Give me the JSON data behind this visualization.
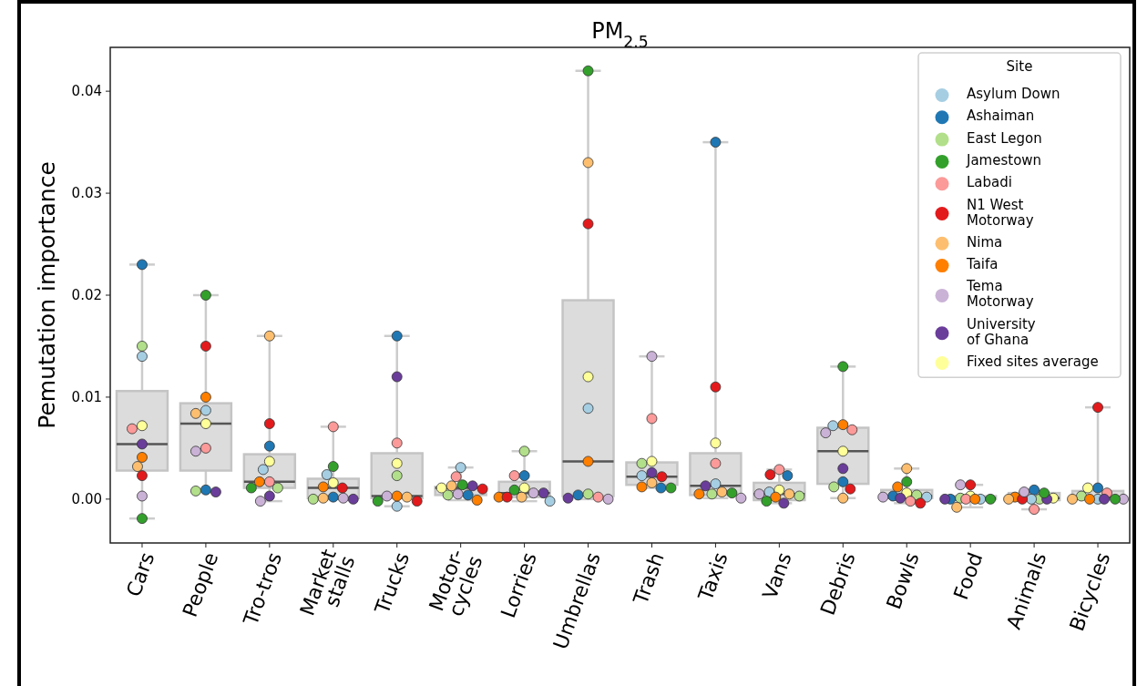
{
  "chart_data": {
    "type": "box",
    "title": "PM$_{2.5}$",
    "ylabel": "Pemutation importance",
    "legend_title": "Site",
    "legend": "top right",
    "marker": "circle",
    "grid": false,
    "categories": [
      "Cars",
      "People",
      "Tro-tros",
      "Market\nstalls",
      "Trucks",
      "Motor-\ncycles",
      "Lorries",
      "Umbrellas",
      "Trash",
      "Taxis",
      "Vans",
      "Debris",
      "Bowls",
      "Food",
      "Animals",
      "Bicycles"
    ],
    "ylim": [
      -0.0043,
      0.0443
    ],
    "yticks": [
      {
        "value": 0,
        "label": "0.00"
      },
      {
        "value": 0.01,
        "label": "0.01"
      },
      {
        "value": 0.02,
        "label": "0.02"
      },
      {
        "value": 0.03,
        "label": "0.03"
      },
      {
        "value": 0.04,
        "label": "0.04"
      }
    ],
    "color": "#dcdcdc",
    "boxes": [
      {
        "low": -0.0019,
        "q1": 0.0028,
        "median": 0.0054,
        "q3": 0.0106,
        "high": 0.023
      },
      {
        "low": 0.0007,
        "q1": 0.0028,
        "median": 0.0074,
        "q3": 0.0094,
        "high": 0.02
      },
      {
        "low": -0.0002,
        "q1": 0.0011,
        "median": 0.0017,
        "q3": 0.0044,
        "high": 0.016
      },
      {
        "low": 0,
        "q1": 0.0001,
        "median": 0.0011,
        "q3": 0.002,
        "high": 0.0071
      },
      {
        "low": -0.0007,
        "q1": 0.0001,
        "median": 0.0003,
        "q3": 0.0045,
        "high": 0.016
      },
      {
        "low": -0.0001,
        "q1": 0.0004,
        "median": 0.0011,
        "q3": 0.0012,
        "high": 0.0031
      },
      {
        "low": -0.0002,
        "q1": 0.0002,
        "median": 0.0006,
        "q3": 0.0017,
        "high": 0.0047
      },
      {
        "low": 0,
        "q1": 0.0003,
        "median": 0.0037,
        "q3": 0.0195,
        "high": 0.042
      },
      {
        "low": 0.0011,
        "q1": 0.0014,
        "median": 0.0022,
        "q3": 0.0036,
        "high": 0.014
      },
      {
        "low": 0.0001,
        "q1": 0.0004,
        "median": 0.0013,
        "q3": 0.0045,
        "high": 0.035
      },
      {
        "low": -0.0004,
        "q1": -0.0001,
        "median": 0.0005,
        "q3": 0.0016,
        "high": 0.0029
      },
      {
        "low": 0.0001,
        "q1": 0.0015,
        "median": 0.0047,
        "q3": 0.007,
        "high": 0.013
      },
      {
        "low": -0.0004,
        "q1": 0.0001,
        "median": 0.0003,
        "q3": 0.0009,
        "high": 0.003
      },
      {
        "low": -0.0008,
        "q1": 0,
        "median": 0.0001,
        "q3": 0.0003,
        "high": 0.0014
      },
      {
        "low": -0.001,
        "q1": -0.0001,
        "median": 0.0001,
        "q3": 0.0006,
        "high": 0.0009
      },
      {
        "low": 0,
        "q1": 0,
        "median": 0.0002,
        "q3": 0.0008,
        "high": 0.009
      }
    ],
    "series": [
      {
        "name": "Asylum Down",
        "color": "#a6cee3",
        "type": "scatter",
        "x": [
          "Cars",
          "People",
          "Tro-tros",
          "Market\nstalls",
          "Trucks",
          "Motor-\ncycles",
          "Lorries",
          "Umbrellas",
          "Trash",
          "Taxis",
          "Vans",
          "Debris",
          "Bowls",
          "Food",
          "Animals",
          "Bicycles"
        ],
        "values": [
          0.014,
          0.0087,
          0.0029,
          0.0024,
          -0.0007,
          0.0031,
          -0.0002,
          0.0089,
          0.0023,
          0.0015,
          0.0007,
          0.0072,
          0.0002,
          0,
          0,
          0
        ]
      },
      {
        "name": "Ashaiman",
        "color": "#1f78b4",
        "type": "scatter",
        "x": [
          "Cars",
          "People",
          "Tro-tros",
          "Market\nstalls",
          "Trucks",
          "Motor-\ncycles",
          "Lorries",
          "Umbrellas",
          "Trash",
          "Taxis",
          "Vans",
          "Debris",
          "Bowls",
          "Food",
          "Animals",
          "Bicycles"
        ],
        "values": [
          0.023,
          0.0009,
          0.0052,
          0.0002,
          0.016,
          0.0004,
          0.0023,
          0.0004,
          0.0011,
          0.035,
          0.0023,
          0.0017,
          0.0003,
          0,
          0.0009,
          0.0011
        ]
      },
      {
        "name": "East Legon",
        "color": "#b2df8a",
        "type": "scatter",
        "x": [
          "Cars",
          "People",
          "Tro-tros",
          "Market\nstalls",
          "Trucks",
          "Motor-\ncycles",
          "Lorries",
          "Umbrellas",
          "Trash",
          "Taxis",
          "Vans",
          "Debris",
          "Bowls",
          "Food",
          "Animals",
          "Bicycles"
        ],
        "values": [
          0.015,
          0.0008,
          0.0011,
          0,
          0.0023,
          0.0004,
          0.0047,
          0.0005,
          0.0035,
          0.0005,
          0.0003,
          0.0012,
          0.0004,
          0.0001,
          0,
          0.0003
        ]
      },
      {
        "name": "Jamestown",
        "color": "#33a02c",
        "type": "scatter",
        "x": [
          "Cars",
          "People",
          "Tro-tros",
          "Market\nstalls",
          "Trucks",
          "Motor-\ncycles",
          "Lorries",
          "Umbrellas",
          "Trash",
          "Taxis",
          "Vans",
          "Debris",
          "Bowls",
          "Food",
          "Animals",
          "Bicycles"
        ],
        "values": [
          -0.0019,
          0.02,
          0.0011,
          0.0032,
          -0.0002,
          0.0014,
          0.0009,
          0.042,
          0.0011,
          0.0006,
          -0.0002,
          0.013,
          0.0017,
          0,
          0.0006,
          0
        ]
      },
      {
        "name": "Labadi",
        "color": "#fb9a99",
        "type": "scatter",
        "x": [
          "Cars",
          "People",
          "Tro-tros",
          "Market\nstalls",
          "Trucks",
          "Motor-\ncycles",
          "Lorries",
          "Umbrellas",
          "Trash",
          "Taxis",
          "Vans",
          "Debris",
          "Bowls",
          "Food",
          "Animals",
          "Bicycles"
        ],
        "values": [
          0.0069,
          0.005,
          0.0017,
          0.0071,
          0.0055,
          0.0022,
          0.0023,
          0.0002,
          0.0079,
          0.0035,
          0.0029,
          0.0068,
          -0.0002,
          0,
          -0.001,
          0.0006
        ]
      },
      {
        "name": "N1 West\nMotorway",
        "color": "#e31a1c",
        "type": "scatter",
        "x": [
          "Cars",
          "People",
          "Tro-tros",
          "Market\nstalls",
          "Trucks",
          "Motor-\ncycles",
          "Lorries",
          "Umbrellas",
          "Trash",
          "Taxis",
          "Vans",
          "Debris",
          "Bowls",
          "Food",
          "Animals",
          "Bicycles"
        ],
        "values": [
          0.0023,
          0.015,
          0.0074,
          0.0011,
          -0.0002,
          0.001,
          0.0002,
          0.027,
          0.0022,
          0.011,
          0.0024,
          0.001,
          -0.0004,
          0.0014,
          0,
          0.009
        ]
      },
      {
        "name": "Nima",
        "color": "#fdbf6f",
        "type": "scatter",
        "x": [
          "Cars",
          "People",
          "Tro-tros",
          "Market\nstalls",
          "Trucks",
          "Motor-\ncycles",
          "Lorries",
          "Umbrellas",
          "Trash",
          "Taxis",
          "Vans",
          "Debris",
          "Bowls",
          "Food",
          "Animals",
          "Bicycles"
        ],
        "values": [
          0.0032,
          0.0084,
          0.016,
          0.0001,
          0.0002,
          0.0013,
          0.0002,
          0.033,
          0.0016,
          0.0007,
          0.0005,
          0.0001,
          0.003,
          -0.0008,
          0,
          0
        ]
      },
      {
        "name": "Taifa",
        "color": "#ff7f00",
        "type": "scatter",
        "x": [
          "Cars",
          "People",
          "Tro-tros",
          "Market\nstalls",
          "Trucks",
          "Motor-\ncycles",
          "Lorries",
          "Umbrellas",
          "Trash",
          "Taxis",
          "Vans",
          "Debris",
          "Bowls",
          "Food",
          "Animals",
          "Bicycles"
        ],
        "values": [
          0.0041,
          0.01,
          0.0017,
          0.0012,
          0.0003,
          -0.0001,
          0.0002,
          0.0037,
          0.0012,
          0.0005,
          0.0002,
          0.0073,
          0.0012,
          0,
          0.0002,
          0
        ]
      },
      {
        "name": "Tema\nMotorway",
        "color": "#cab2d6",
        "type": "scatter",
        "x": [
          "Cars",
          "People",
          "Tro-tros",
          "Market\nstalls",
          "Trucks",
          "Motor-\ncycles",
          "Lorries",
          "Umbrellas",
          "Trash",
          "Taxis",
          "Vans",
          "Debris",
          "Bowls",
          "Food",
          "Animals",
          "Bicycles"
        ],
        "values": [
          0.0003,
          0.0047,
          -0.0002,
          0.0001,
          0.0003,
          0.0005,
          0.0006,
          0,
          0.014,
          0.0001,
          0.0005,
          0.0065,
          0.0002,
          0.0014,
          0.0007,
          0
        ]
      },
      {
        "name": "University\nof Ghana",
        "color": "#6a3d9a",
        "type": "scatter",
        "x": [
          "Cars",
          "People",
          "Tro-tros",
          "Market\nstalls",
          "Trucks",
          "Motor-\ncycles",
          "Lorries",
          "Umbrellas",
          "Trash",
          "Taxis",
          "Vans",
          "Debris",
          "Bowls",
          "Food",
          "Animals",
          "Bicycles"
        ],
        "values": [
          0.0054,
          0.0007,
          0.0003,
          0,
          0.012,
          0.0013,
          0.0006,
          0.0001,
          0.0026,
          0.0013,
          -0.0004,
          0.003,
          0.0001,
          0,
          0,
          0
        ]
      },
      {
        "name": "Fixed sites average",
        "color": "#ffff99",
        "type": "scatter",
        "x": [
          "Cars",
          "People",
          "Tro-tros",
          "Market\nstalls",
          "Trucks",
          "Motor-\ncycles",
          "Lorries",
          "Umbrellas",
          "Trash",
          "Taxis",
          "Vans",
          "Debris",
          "Bowls",
          "Food",
          "Animals",
          "Bicycles"
        ],
        "values": [
          0.0072,
          0.0074,
          0.0037,
          0.0016,
          0.0035,
          0.0011,
          0.0011,
          0.012,
          0.0037,
          0.0055,
          0.0009,
          0.0047,
          0.0006,
          0.0003,
          0.0001,
          0.0011
        ]
      }
    ]
  }
}
